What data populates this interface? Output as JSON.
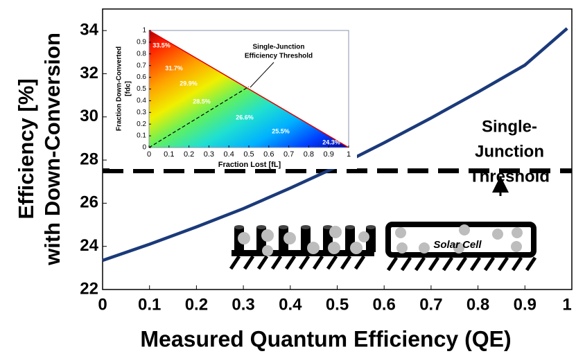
{
  "chart_data": [
    {
      "type": "line",
      "x": [
        0,
        0.1,
        0.2,
        0.3,
        0.4,
        0.5,
        0.6,
        0.7,
        0.8,
        0.9,
        0.99
      ],
      "series": [
        {
          "color": "#1b3a7a",
          "values": [
            23.35,
            24.1,
            24.9,
            25.75,
            26.7,
            27.7,
            28.8,
            29.95,
            31.15,
            32.4,
            34.1
          ]
        }
      ],
      "xlabel": "Measured Quantum Efficiency (QE)",
      "ylabel": [
        "Efficiency [%]",
        "with Down-Conversion"
      ],
      "xlim": [
        0,
        1
      ],
      "ylim": [
        22,
        35
      ],
      "xticks": [
        0,
        0.1,
        0.2,
        0.3,
        0.4,
        0.5,
        0.6,
        0.7,
        0.8,
        0.9,
        1
      ],
      "yticks": [
        22,
        24,
        26,
        28,
        30,
        32,
        34
      ],
      "threshold": {
        "value": 27.5,
        "label": [
          "Single-",
          "Junction",
          "Threshold"
        ]
      }
    },
    {
      "type": "heatmap",
      "xlabel": "Fraction Lost [fL]",
      "ylabel": [
        "Fraction Down-Converted",
        "[fdc]"
      ],
      "xlim": [
        0,
        1
      ],
      "ylim": [
        0,
        1
      ],
      "xticks": [
        0,
        0.1,
        0.2,
        0.3,
        0.4,
        0.5,
        0.6,
        0.7,
        0.8,
        0.9,
        1
      ],
      "yticks": [
        0,
        0.1,
        0.2,
        0.3,
        0.4,
        0.5,
        0.6,
        0.7,
        0.8,
        0.9,
        1
      ],
      "contour_values": [
        33.5,
        31.7,
        29.9,
        28.5,
        26.6,
        25.5,
        24.3
      ],
      "value_labels": [
        "33.5%",
        "31.7%",
        "29.9%",
        "28.5%",
        "26.6%",
        "25.5%",
        "24.3%"
      ],
      "threshold_label": [
        "Single-Junction",
        "Efficiency Threshold"
      ],
      "threshold_line": {
        "x": [
          0,
          0.5
        ],
        "y": [
          0,
          0.52
        ]
      }
    }
  ],
  "diagram": {
    "label": "Solar Cell"
  }
}
